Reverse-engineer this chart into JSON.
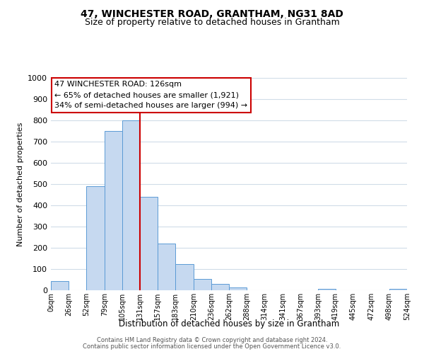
{
  "title": "47, WINCHESTER ROAD, GRANTHAM, NG31 8AD",
  "subtitle": "Size of property relative to detached houses in Grantham",
  "xlabel": "Distribution of detached houses by size in Grantham",
  "ylabel": "Number of detached properties",
  "bar_edges": [
    0,
    26,
    52,
    79,
    105,
    131,
    157,
    183,
    210,
    236,
    262,
    288,
    314,
    341,
    367,
    393,
    419,
    445,
    472,
    498,
    524
  ],
  "bar_heights": [
    45,
    0,
    490,
    750,
    800,
    440,
    220,
    125,
    52,
    30,
    15,
    0,
    0,
    0,
    0,
    8,
    0,
    0,
    0,
    8
  ],
  "bar_color": "#c6d9f0",
  "bar_edge_color": "#5b9bd5",
  "vline_x": 131,
  "vline_color": "#cc0000",
  "ylim": [
    0,
    1000
  ],
  "yticks": [
    0,
    100,
    200,
    300,
    400,
    500,
    600,
    700,
    800,
    900,
    1000
  ],
  "xtick_labels": [
    "0sqm",
    "26sqm",
    "52sqm",
    "79sqm",
    "105sqm",
    "131sqm",
    "157sqm",
    "183sqm",
    "210sqm",
    "236sqm",
    "262sqm",
    "288sqm",
    "314sqm",
    "341sqm",
    "367sqm",
    "393sqm",
    "419sqm",
    "445sqm",
    "472sqm",
    "498sqm",
    "524sqm"
  ],
  "annotation_title": "47 WINCHESTER ROAD: 126sqm",
  "annotation_line1": "← 65% of detached houses are smaller (1,921)",
  "annotation_line2": "34% of semi-detached houses are larger (994) →",
  "annotation_box_color": "#ffffff",
  "annotation_box_edge": "#cc0000",
  "footer1": "Contains HM Land Registry data © Crown copyright and database right 2024.",
  "footer2": "Contains public sector information licensed under the Open Government Licence v3.0.",
  "bg_color": "#ffffff",
  "grid_color": "#d0dce8",
  "title_fontsize": 10,
  "subtitle_fontsize": 9
}
